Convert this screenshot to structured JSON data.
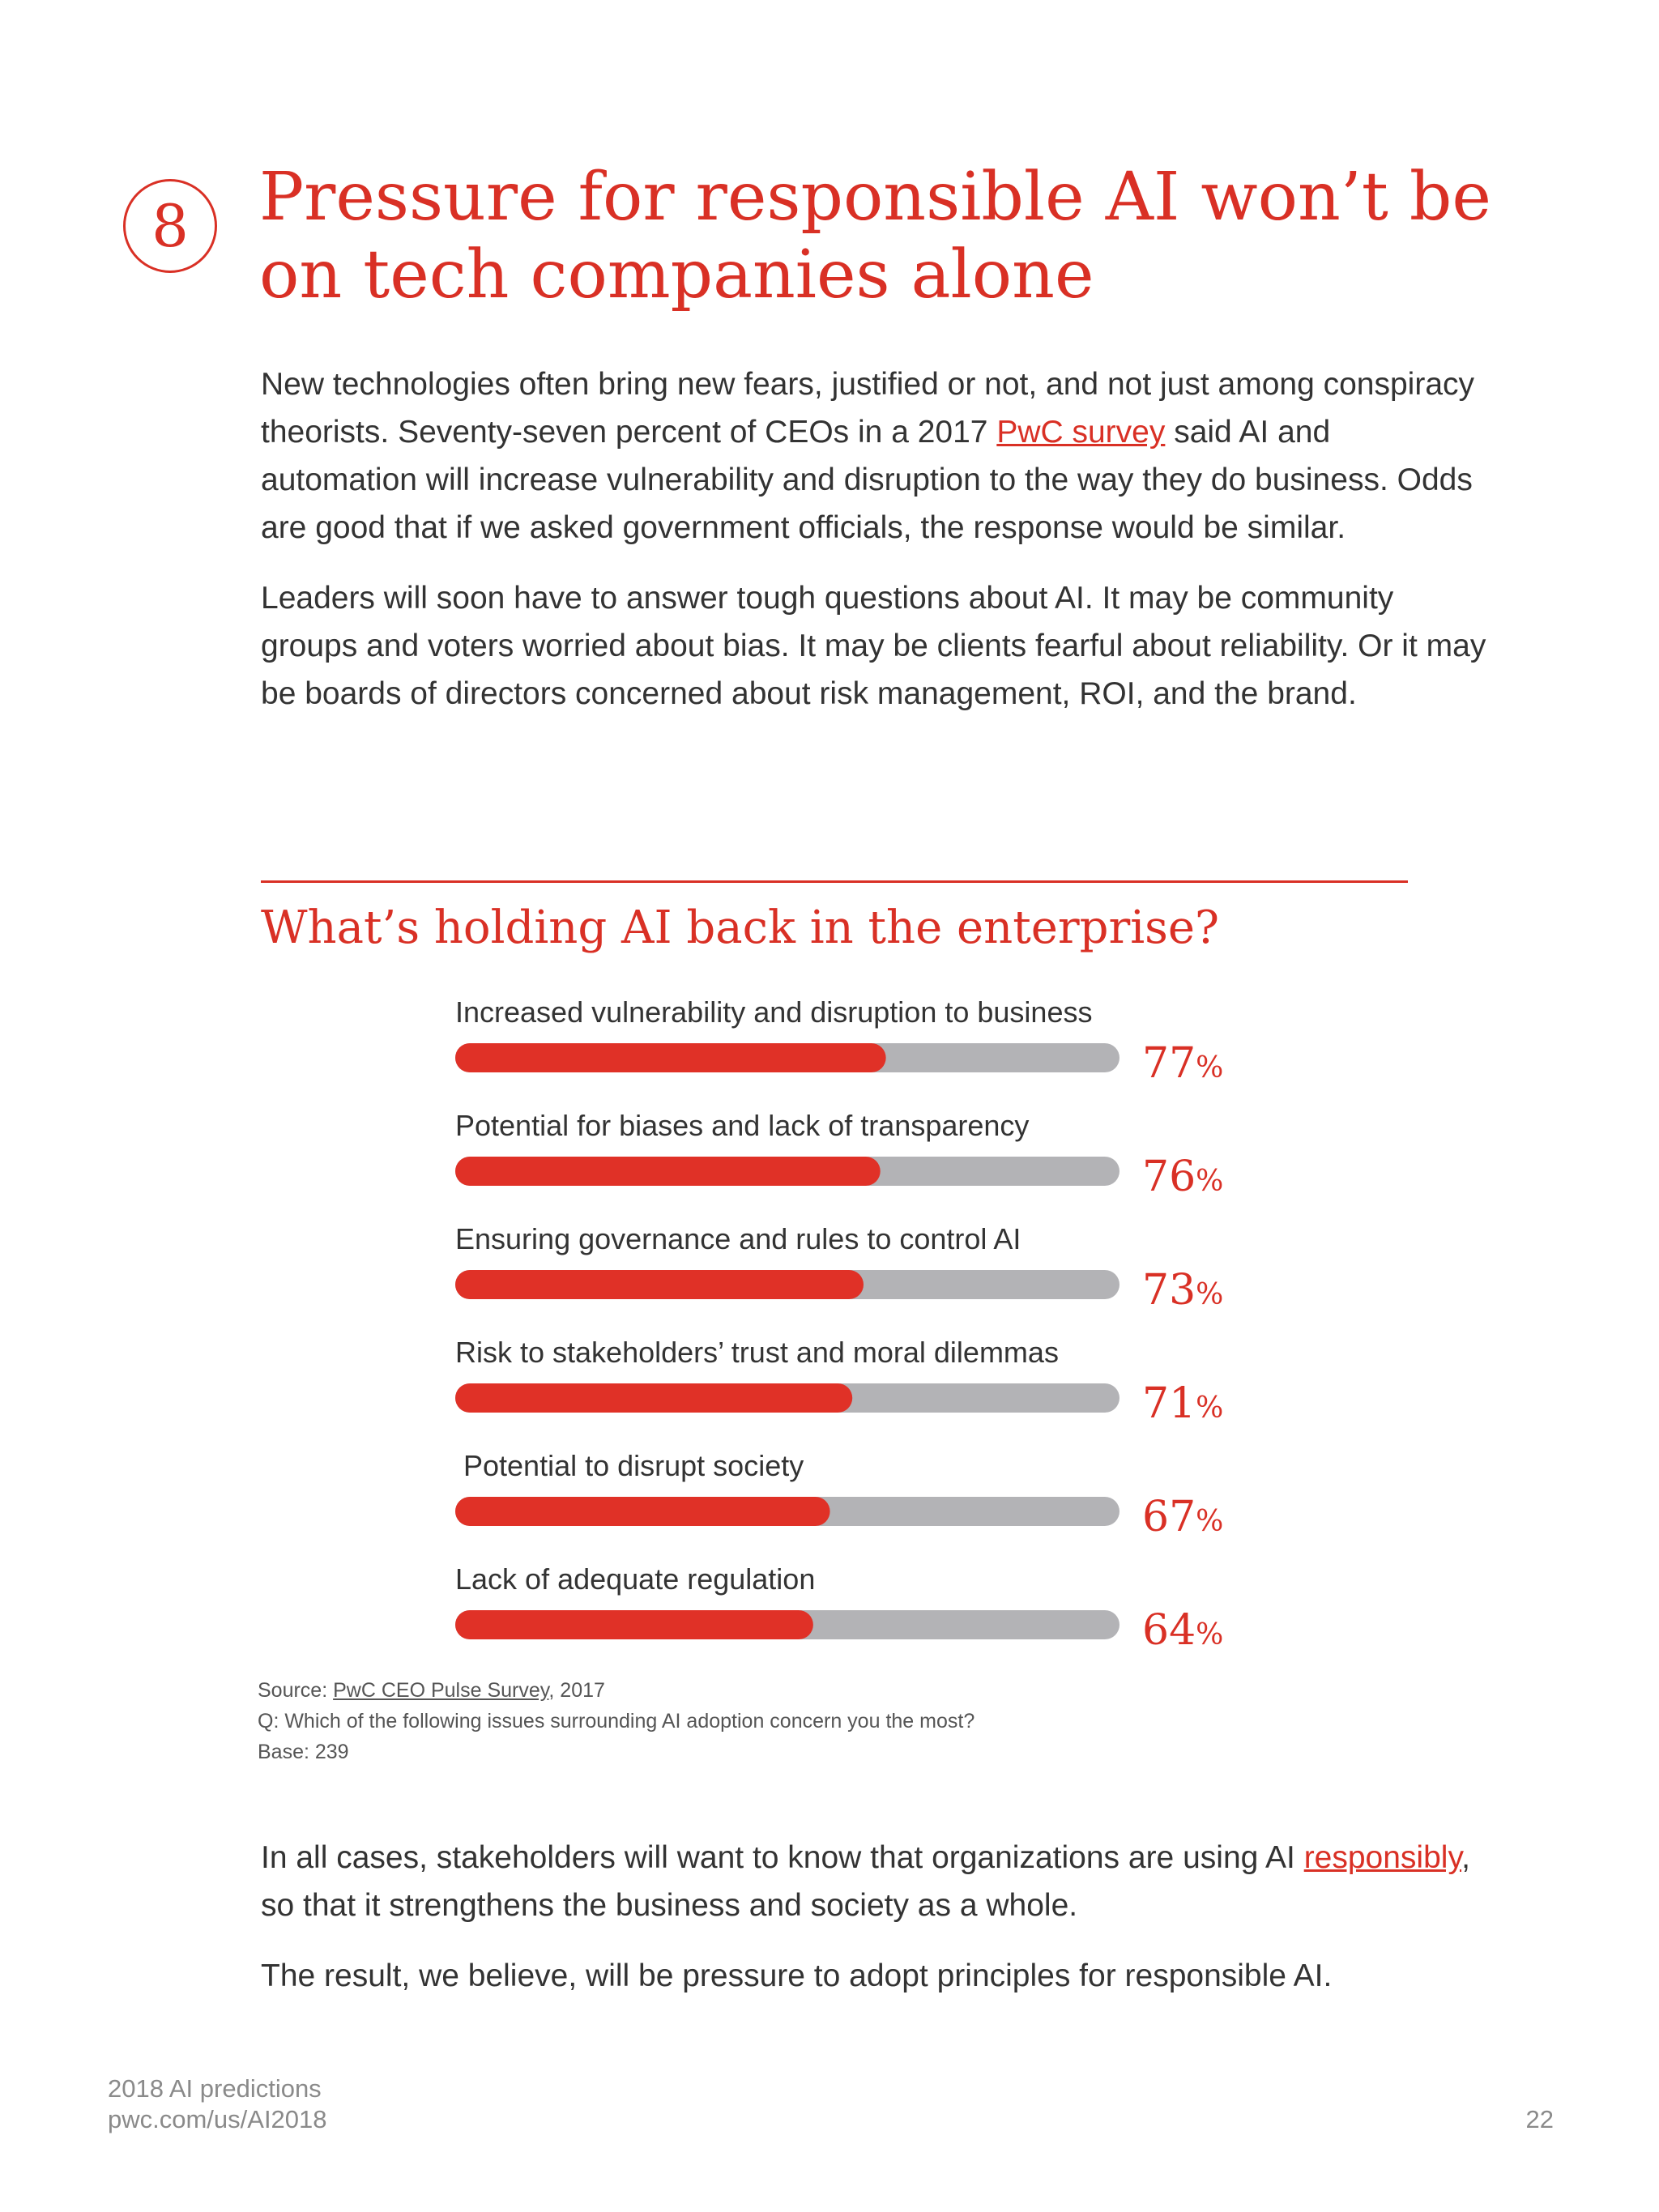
{
  "section": {
    "number": "8",
    "title": "Pressure for responsible AI won’t be on tech companies alone"
  },
  "intro": {
    "p1_before_link": "New technologies often bring new fears, justified or not, and not just among conspiracy theorists. Seventy-seven percent of CEOs in a 2017 ",
    "p1_link": "PwC survey",
    "p1_after_link": " said AI and automation will increase vulnerability and disruption to the way they do business. Odds are good that if we asked government officials, the response would be similar.",
    "p2": "Leaders will soon have to answer tough questions about AI. It may be community groups and voters worried about bias. It may be clients fearful about reliability. Or it may be boards of directors concerned about risk management, ROI, and the brand."
  },
  "chart_heading": "What’s holding AI back in the enterprise?",
  "chart_data": {
    "type": "bar",
    "orientation": "horizontal",
    "categories": [
      "Increased vulnerability and disruption to business",
      "Potential for biases and lack of transparency",
      "Ensuring governance and rules to control AI",
      "Risk to stakeholders’ trust and moral dilemmas",
      "Potential to disrupt society",
      "Lack of adequate regulation"
    ],
    "values": [
      77,
      76,
      73,
      71,
      67,
      64
    ],
    "value_labels": [
      "77",
      "76",
      "73",
      "71",
      "67",
      "64"
    ],
    "unit": "%",
    "xlim": [
      0,
      100
    ],
    "colors": {
      "bar": "#e03127",
      "track": "#b3b3b6",
      "value_text": "#d93025"
    }
  },
  "source": {
    "label": "Source: ",
    "link": "PwC CEO Pulse Survey",
    "after_link": ", 2017",
    "question": "Q: Which of the following issues surrounding AI adoption concern you the most?",
    "base": "Base: 239"
  },
  "closing": {
    "p1_before_link": "In all cases, stakeholders will want to know that organizations are using AI ",
    "p1_link": "responsibly",
    "p1_after_link": ", so that it strengthens the business and society as a whole.",
    "p2": "The result, we believe, will be pressure to adopt principles for responsible AI."
  },
  "footer": {
    "line1": "2018 AI predictions",
    "line2": "pwc.com/us/AI2018",
    "page": "22"
  },
  "colors": {
    "accent": "#d93025",
    "body_text": "#333333",
    "footer_text": "#8a8a8a"
  }
}
